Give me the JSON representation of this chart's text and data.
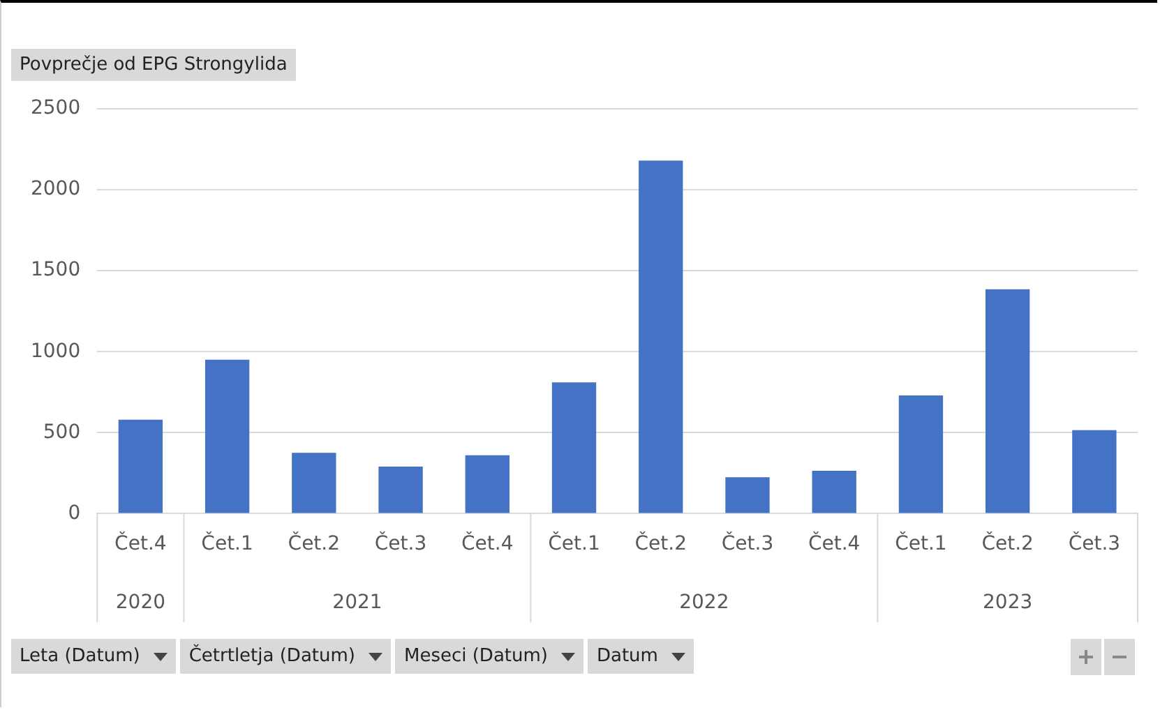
{
  "chart_data": {
    "type": "bar",
    "title": "Povprečje od EPG Strongylida",
    "categories": [
      "Čet.4",
      "Čet.1",
      "Čet.2",
      "Čet.3",
      "Čet.4",
      "Čet.1",
      "Čet.2",
      "Čet.3",
      "Čet.4",
      "Čet.1",
      "Čet.2",
      "Čet.3"
    ],
    "values": [
      580,
      950,
      375,
      290,
      360,
      810,
      2180,
      225,
      265,
      730,
      1385,
      515
    ],
    "color": "#4472c4",
    "ylim": [
      0,
      2500
    ],
    "yticks": [
      0,
      500,
      1000,
      1500,
      2000,
      2500
    ],
    "grid": "y",
    "legend": false,
    "annotations": [
      "2020",
      "2021",
      "2022",
      "2023",
      "Leta (Datum)",
      "Četrtletja (Datum)",
      "Meseci (Datum)",
      "Datum"
    ]
  }
}
